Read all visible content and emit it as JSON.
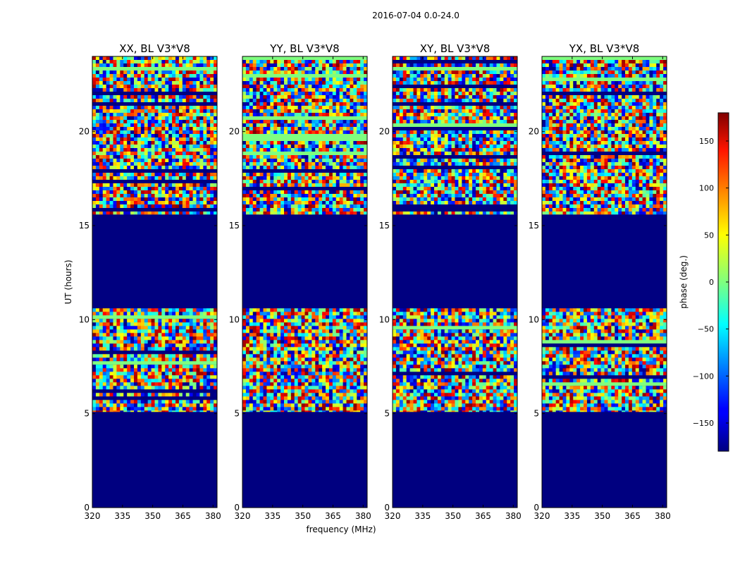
{
  "suptitle": "2016-07-04 0.0-24.0",
  "ylabel": "UT (hours)",
  "xlabel": "frequency (MHz)",
  "colorbar_label": "phase (deg.)",
  "chart_data": {
    "type": "heatmap",
    "colormap": "jet",
    "masked_color": "#000080",
    "x_ticks": [
      "320",
      "335",
      "350",
      "365",
      "380"
    ],
    "x_tick_values": [
      320,
      335,
      350,
      365,
      380
    ],
    "xlim": [
      320,
      382
    ],
    "y_ticks": [
      "0",
      "5",
      "10",
      "15",
      "20"
    ],
    "y_tick_values": [
      0,
      5,
      10,
      15,
      20
    ],
    "ylim": [
      0,
      24
    ],
    "panels": [
      {
        "title": "XX, BL V3*V8"
      },
      {
        "title": "YY, BL V3*V8"
      },
      {
        "title": "XY, BL V3*V8"
      },
      {
        "title": "YX, BL V3*V8"
      }
    ],
    "data_time_ranges": [
      [
        5.1,
        10.6
      ],
      [
        15.6,
        24.0
      ]
    ],
    "gap_time_ranges": [
      [
        0.0,
        5.1
      ],
      [
        10.6,
        15.6
      ]
    ],
    "colorbar": {
      "range": [
        -180,
        180
      ],
      "ticks": [
        "150",
        "100",
        "50",
        "0",
        "−50",
        "−100",
        "−150"
      ],
      "tick_values": [
        150,
        100,
        50,
        0,
        -50,
        -100,
        -150
      ]
    }
  }
}
